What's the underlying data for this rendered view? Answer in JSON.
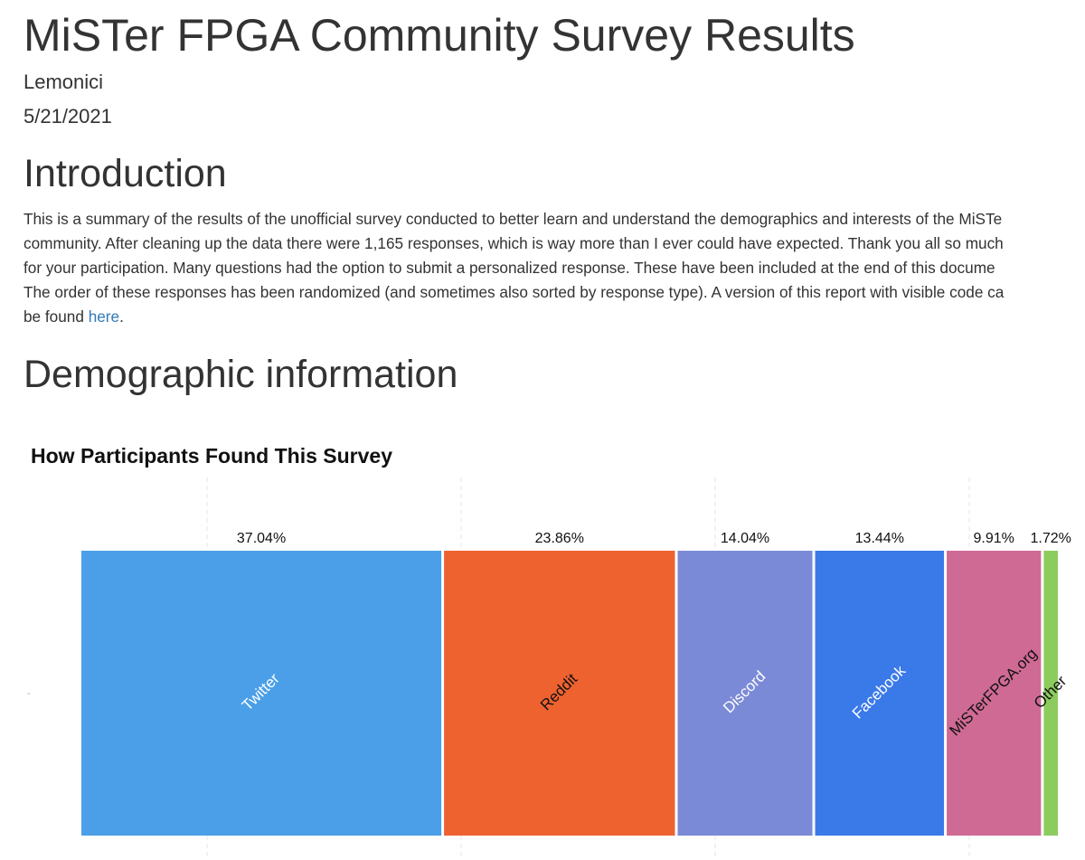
{
  "document": {
    "title": "MiSTer FPGA Community Survey Results",
    "author": "Lemonici",
    "date": "5/21/2021"
  },
  "sections": {
    "introduction": {
      "heading": "Introduction",
      "lines": [
        "This is a summary of the results of the unofficial survey conducted to better learn and understand the demographics and interests of the MiSTe",
        "community. After cleaning up the data there were 1,165 responses, which is way more than I ever could have expected. Thank you all so much",
        "for your participation. Many questions had the option to submit a personalized response. These have been included at the end of this docume",
        "The order of these responses has been randomized (and sometimes also sorted by response type). A version of this report with visible code ca"
      ],
      "last_line_prefix": "be found ",
      "link_text": "here",
      "last_line_suffix": "."
    },
    "demographics": {
      "heading": "Demographic information"
    }
  },
  "chart_data": {
    "type": "bar",
    "variant": "stacked-100-percent-treemap",
    "title": "How Participants Found This Survey",
    "xlabel": "",
    "ylabel": "",
    "categories": [
      "Twitter",
      "Reddit",
      "Discord",
      "Facebook",
      "MiSTerFPGA.org",
      "Other"
    ],
    "values": [
      37.04,
      23.86,
      14.04,
      13.44,
      9.91,
      1.72
    ],
    "value_labels": [
      "37.04%",
      "23.86%",
      "14.04%",
      "13.44%",
      "9.91%",
      "1.72%"
    ],
    "colors": [
      "#4a9fe8",
      "#ee6230",
      "#7b8ad6",
      "#3a79e8",
      "#cf6a95",
      "#8ccc5e"
    ],
    "label_colors": [
      "#ffffff",
      "#111111",
      "#ffffff",
      "#ffffff",
      "#111111",
      "#111111"
    ],
    "y_tick_label": "-",
    "grid": true,
    "legend": "none"
  }
}
